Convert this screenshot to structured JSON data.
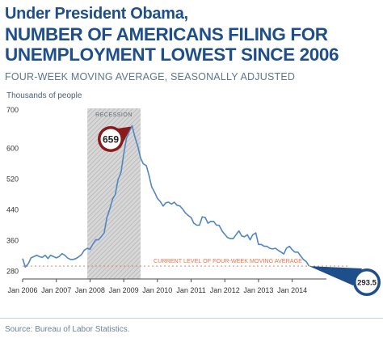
{
  "kicker": "Under President Obama,",
  "headline": [
    "NUMBER OF AMERICANS FILING FOR",
    "UNEMPLOYMENT LOWEST SINCE 2006"
  ],
  "subtitle": "FOUR-WEEK MOVING AVERAGE, SEASONALLY ADJUSTED",
  "source": "Source: Bureau of Labor Statistics.",
  "colors": {
    "title": "#1f4f8a",
    "line": "#4f86c4",
    "peak_badge": "#8b1a1a",
    "current_badge": "#1f4f8a",
    "reference_line": "#e8734a",
    "recession_fill": "#d7d7d7"
  },
  "chart_data": {
    "type": "line",
    "title": "NUMBER OF AMERICANS FILING FOR UNEMPLOYMENT LOWEST SINCE 2006",
    "ylabel": "Thousands of people",
    "xlabel": "",
    "ylim": [
      260,
      700
    ],
    "xlim": [
      2006.0,
      2014.92
    ],
    "yticks": [
      280,
      360,
      440,
      520,
      600,
      700
    ],
    "ytick_labels": [
      "280",
      "360",
      "440",
      "520",
      "600",
      "700"
    ],
    "xticks": [
      2006,
      2007,
      2008,
      2009,
      2010,
      2011,
      2012,
      2013,
      2014
    ],
    "xtick_labels": [
      "Jan 2006",
      "Jan 2007",
      "Jan 2008",
      "Jan 2009",
      "Jan 2010",
      "Jan 2011",
      "Jan 2012",
      "Jan 2013",
      "Jan 2014"
    ],
    "grid": false,
    "recession": {
      "label": "RECESSION",
      "start": 2007.92,
      "end": 2009.5
    },
    "reference_line": {
      "value": 293.5,
      "label": "CURRENT LEVEL OF FOUR-WEEK MOVING AVERAGE"
    },
    "annotations": [
      {
        "label": "659",
        "x": 2009.25,
        "y": 659
      },
      {
        "label": "293.5",
        "x": 2014.5,
        "y": 293.5
      }
    ],
    "series": [
      {
        "x": [
          2006.0,
          2006.08,
          2006.17,
          2006.25,
          2006.33,
          2006.42,
          2006.5,
          2006.58,
          2006.67,
          2006.75,
          2006.83,
          2006.92,
          2007.0,
          2007.08,
          2007.17,
          2007.25,
          2007.33,
          2007.42,
          2007.5,
          2007.58,
          2007.67,
          2007.75,
          2007.83,
          2007.92,
          2008.0,
          2008.08,
          2008.17,
          2008.25,
          2008.33,
          2008.42,
          2008.5,
          2008.58,
          2008.67,
          2008.75,
          2008.83,
          2008.92,
          2009.0,
          2009.08,
          2009.17,
          2009.25,
          2009.33,
          2009.42,
          2009.5,
          2009.58,
          2009.67,
          2009.75,
          2009.83,
          2009.92,
          2010.0,
          2010.08,
          2010.17,
          2010.25,
          2010.33,
          2010.42,
          2010.5,
          2010.58,
          2010.67,
          2010.75,
          2010.83,
          2010.92,
          2011.0,
          2011.08,
          2011.17,
          2011.25,
          2011.33,
          2011.42,
          2011.5,
          2011.58,
          2011.67,
          2011.75,
          2011.83,
          2011.92,
          2012.0,
          2012.08,
          2012.17,
          2012.25,
          2012.33,
          2012.42,
          2012.5,
          2012.58,
          2012.67,
          2012.75,
          2012.83,
          2012.92,
          2013.0,
          2013.08,
          2013.17,
          2013.25,
          2013.33,
          2013.42,
          2013.5,
          2013.58,
          2013.67,
          2013.75,
          2013.83,
          2013.92,
          2014.0,
          2014.08,
          2014.17,
          2014.25,
          2014.33,
          2014.42,
          2014.5
        ],
        "y": [
          313,
          291,
          300,
          315,
          318,
          322,
          318,
          316,
          322,
          313,
          322,
          318,
          315,
          318,
          326,
          322,
          315,
          311,
          311,
          313,
          318,
          324,
          335,
          340,
          337,
          350,
          362,
          362,
          370,
          380,
          420,
          440,
          468,
          480,
          518,
          538,
          585,
          625,
          645,
          659,
          630,
          605,
          575,
          560,
          555,
          530,
          500,
          485,
          470,
          462,
          450,
          458,
          460,
          455,
          460,
          452,
          450,
          442,
          432,
          425,
          420,
          405,
          400,
          400,
          422,
          420,
          405,
          410,
          410,
          400,
          400,
          385,
          376,
          368,
          365,
          365,
          375,
          385,
          372,
          370,
          375,
          362,
          375,
          380,
          350,
          350,
          345,
          345,
          340,
          338,
          340,
          335,
          330,
          325,
          340,
          345,
          336,
          330,
          330,
          320,
          311,
          305,
          293.5
        ]
      }
    ]
  }
}
